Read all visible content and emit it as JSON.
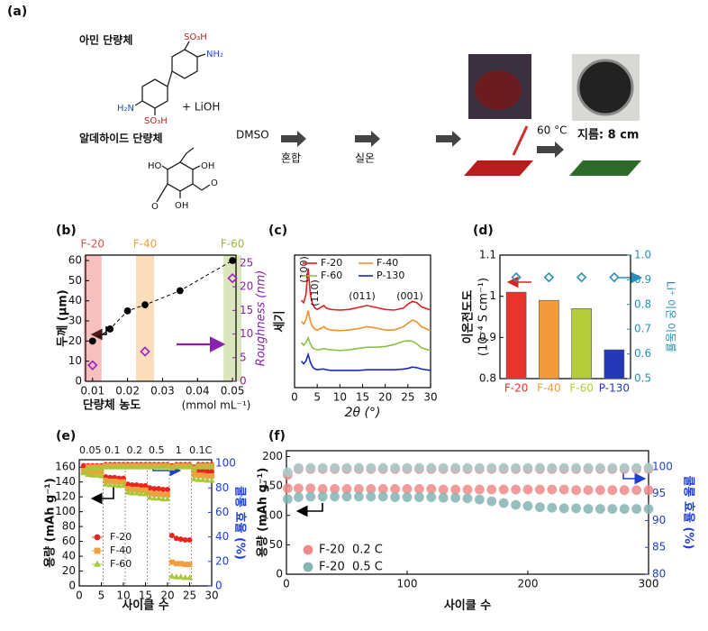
{
  "panel_a": {
    "label": "(a)",
    "amine_monomer": "아민 단량체",
    "aldehyde_monomer": "알데하이드 단량체",
    "plus_lioh": "+ LiOH",
    "solvent": "DMSO",
    "step_mix": "혼합",
    "step_rt": "실온",
    "temperature": "60 °C",
    "diameter": "지름: 8 cm",
    "groups": {
      "so3h": "SO₃H",
      "nh2": "NH₂",
      "h2n": "H₂N",
      "oh": "OH",
      "ho": "HO",
      "o": "O"
    }
  },
  "chart_data": [
    {
      "label": "(b)",
      "type": "scatter",
      "xlabel": "단량체 농도",
      "xunit": "(mmol mL⁻¹)",
      "ylabel": "두께 (μm)",
      "y2label": "Roughness (nm)",
      "xlim": [
        0.008,
        0.051
      ],
      "xticks": [
        0.01,
        0.02,
        0.03,
        0.04,
        0.05
      ],
      "ylim": [
        0,
        62.7
      ],
      "yticks": [
        0,
        10,
        20,
        30,
        40,
        50,
        60
      ],
      "y2lim": [
        0,
        26.7
      ],
      "y2ticks": [
        0,
        5,
        10,
        15,
        20,
        25
      ],
      "bands": [
        {
          "name": "F-20",
          "x": 0.01,
          "color": "#e84a4a"
        },
        {
          "name": "F-40",
          "x": 0.025,
          "color": "#f0a040"
        },
        {
          "name": "F-60",
          "x": 0.05,
          "color": "#98b840"
        }
      ],
      "series": [
        {
          "color": "#000000",
          "marker": "circle",
          "filled": true,
          "line": "dashed",
          "x": [
            0.01,
            0.015,
            0.02,
            0.025,
            0.035,
            0.05
          ],
          "values": [
            20,
            26,
            35,
            38,
            45,
            60
          ]
        },
        {
          "color": "#a020c0",
          "marker": "diamond",
          "filled": false,
          "axis": "y2",
          "x": [
            0.01,
            0.025,
            0.05
          ],
          "values": [
            3.4,
            6.3,
            21.8
          ]
        }
      ]
    },
    {
      "label": "(c)",
      "type": "line",
      "xlabel": "2θ (°)",
      "ylabel": "세기",
      "xlim": [
        0,
        30
      ],
      "xticks": [
        0,
        5,
        10,
        15,
        20,
        25,
        30
      ],
      "ylim": [
        0,
        10
      ],
      "annotations": [
        "(100)",
        "(110)",
        "(011)",
        "(001)"
      ],
      "x": [
        1.5,
        2,
        2.5,
        3,
        3.5,
        4,
        4.5,
        5,
        6,
        6.5,
        7,
        8,
        10,
        12,
        14,
        16,
        18,
        20,
        22,
        24,
        25,
        26,
        27,
        28,
        30
      ],
      "series": [
        {
          "name": "F-20",
          "color": "#e02020",
          "values": [
            6.6,
            6.4,
            7.0,
            9.0,
            7.0,
            6.3,
            6.0,
            5.9,
            6.1,
            6.2,
            6.0,
            5.9,
            5.85,
            5.9,
            6.05,
            6.2,
            6.05,
            5.9,
            5.85,
            6.0,
            6.3,
            6.5,
            6.4,
            6.1,
            5.85
          ]
        },
        {
          "name": "F-40",
          "color": "#f0902a",
          "values": [
            5.0,
            4.8,
            5.1,
            5.8,
            5.0,
            4.6,
            4.4,
            4.35,
            4.5,
            4.6,
            4.45,
            4.35,
            4.3,
            4.35,
            4.45,
            4.6,
            4.5,
            4.35,
            4.35,
            4.6,
            4.85,
            5.1,
            4.95,
            4.6,
            4.3
          ]
        },
        {
          "name": "F-60",
          "color": "#8cc040",
          "values": [
            3.4,
            3.2,
            3.4,
            3.75,
            3.3,
            3.0,
            2.9,
            2.85,
            2.9,
            2.95,
            2.9,
            2.85,
            2.8,
            2.85,
            2.95,
            3.05,
            3.05,
            3.1,
            3.25,
            3.5,
            3.55,
            3.5,
            3.3,
            3.0,
            2.8
          ]
        },
        {
          "name": "P-130",
          "color": "#1a28c8",
          "values": [
            2.0,
            1.8,
            2.0,
            2.5,
            1.9,
            1.55,
            1.4,
            1.35,
            1.4,
            1.4,
            1.35,
            1.3,
            1.3,
            1.3,
            1.3,
            1.35,
            1.35,
            1.35,
            1.35,
            1.4,
            1.45,
            1.55,
            1.5,
            1.4,
            1.3
          ]
        }
      ]
    },
    {
      "label": "(d)",
      "type": "bar",
      "ylabel": "이온전도도",
      "yunit": "(10⁻⁴ S cm⁻¹)",
      "y2label": "Li⁺ 이온 이동률",
      "categories": [
        "F-20",
        "F-40",
        "F-60",
        "P-130"
      ],
      "values": [
        1.01,
        0.99,
        0.97,
        0.87
      ],
      "colors": [
        "#e8342c",
        "#f39a3a",
        "#b5cc3a",
        "#2438b8"
      ],
      "ylim": [
        0.8,
        1.1
      ],
      "yticks": [
        0.8,
        0.9,
        1,
        1.1
      ],
      "y2lim": [
        0.5,
        1
      ],
      "y2ticks": [
        0.5,
        0.6,
        0.7,
        0.8,
        0.9,
        {
          "value": 1,
          "label": "1.0"
        }
      ],
      "series": [
        {
          "color": "#2a8fb8",
          "marker": "diamond",
          "filled": false,
          "axis": "y2",
          "values": [
            0.91,
            0.91,
            0.91,
            0.91
          ]
        }
      ]
    },
    {
      "label": "(e)",
      "type": "scatter",
      "xlabel": "사이클 수",
      "ylabel": "용량 (mAh g⁻¹)",
      "y2label": "쿨롱 효율 (%)",
      "rates": [
        "0.05",
        "0.1",
        "0.2",
        "0.5",
        "1",
        "0.1C"
      ],
      "xlim": [
        0,
        30
      ],
      "xticks": [
        0,
        5,
        10,
        15,
        20,
        25,
        30
      ],
      "ylim": [
        0,
        170
      ],
      "yticks": [
        0,
        20,
        40,
        60,
        80,
        100,
        120,
        140,
        160
      ],
      "y2lim": [
        0,
        103
      ],
      "y2ticks": [
        0,
        20,
        40,
        60,
        80,
        100
      ],
      "x": [
        1,
        2,
        3,
        4,
        5,
        6,
        7,
        8,
        9,
        10,
        11,
        12,
        13,
        14,
        15,
        16,
        17,
        18,
        19,
        20,
        21,
        22,
        23,
        24,
        25,
        26,
        27,
        28,
        29,
        30
      ],
      "series": [
        {
          "name": "F-20",
          "color": "#e8251f",
          "marker": "circle",
          "filled": true,
          "values": [
            162,
            160,
            159,
            158,
            158,
            147,
            146,
            146,
            145,
            145,
            137,
            136,
            136,
            135,
            135,
            132,
            131,
            131,
            130,
            130,
            68,
            64,
            63,
            62,
            62,
            156,
            155,
            155,
            154,
            154
          ]
        },
        {
          "name": "F-40",
          "color": "#f0a040",
          "marker": "square",
          "filled": true,
          "values": [
            156,
            154,
            153,
            153,
            152,
            142,
            141,
            141,
            140,
            140,
            131,
            130,
            130,
            129,
            129,
            125,
            124,
            124,
            123,
            123,
            32,
            30,
            30,
            29,
            29,
            150,
            149,
            149,
            148,
            148
          ]
        },
        {
          "name": "F-60",
          "color": "#a8c83a",
          "marker": "triangle",
          "filled": true,
          "values": [
            152,
            150,
            149,
            149,
            148,
            137,
            136,
            136,
            135,
            135,
            126,
            125,
            125,
            124,
            124,
            119,
            118,
            118,
            117,
            117,
            13,
            12,
            12,
            11,
            11,
            144,
            143,
            143,
            142,
            142
          ]
        },
        {
          "color": "#e8251f",
          "marker": "circle",
          "filled": true,
          "axis": "y2",
          "values": [
            95,
            98,
            98,
            98,
            98,
            99,
            99,
            99,
            99,
            99,
            99,
            99,
            99,
            99,
            99,
            99,
            99,
            99,
            99,
            99,
            98,
            99,
            99,
            99,
            99,
            97,
            99,
            99,
            99,
            99
          ]
        },
        {
          "color": "#f0a040",
          "marker": "square",
          "filled": true,
          "axis": "y2",
          "values": [
            94,
            97,
            97,
            97,
            97,
            98,
            98,
            98,
            98,
            98,
            98,
            98,
            98,
            98,
            98,
            98,
            98,
            98,
            98,
            98,
            97,
            98,
            98,
            98,
            98,
            96,
            98,
            98,
            98,
            98
          ]
        },
        {
          "color": "#a8c83a",
          "marker": "triangle",
          "filled": true,
          "axis": "y2",
          "values": [
            93,
            96,
            96,
            96,
            96,
            97,
            97,
            97,
            97,
            97,
            97,
            97,
            97,
            97,
            97,
            97,
            97,
            97,
            97,
            97,
            96,
            97,
            97,
            97,
            97,
            95,
            97,
            97,
            97,
            97
          ]
        }
      ]
    },
    {
      "label": "(f)",
      "type": "scatter",
      "xlabel": "사이클 수",
      "ylabel": "용량 (mAh g⁻¹)",
      "y2label": "쿨롱 효율 (%)",
      "xlim": [
        0,
        300
      ],
      "xticks": [
        0,
        100,
        200,
        300
      ],
      "ylim": [
        0,
        210
      ],
      "yticks": [
        0,
        50,
        100,
        150,
        200
      ],
      "y2lim": [
        80,
        103
      ],
      "y2ticks": [
        80,
        85,
        90,
        95,
        100
      ],
      "x": [
        1,
        10,
        20,
        30,
        40,
        50,
        60,
        70,
        80,
        90,
        100,
        110,
        120,
        130,
        140,
        150,
        160,
        170,
        180,
        190,
        200,
        210,
        220,
        230,
        240,
        250,
        260,
        270,
        280,
        290,
        300
      ],
      "series": [
        {
          "name": "F-20  0.2 C",
          "color": "#f08a8a",
          "marker": "circle",
          "filled": true,
          "values": [
            146,
            146,
            146,
            145,
            145,
            145,
            145,
            145,
            145,
            145,
            145,
            145,
            145,
            144,
            144,
            144,
            144,
            144,
            144,
            144,
            144,
            144,
            144,
            144,
            143,
            143,
            143,
            143,
            143,
            143,
            143
          ]
        },
        {
          "name": "F-20  0.5 C",
          "color": "#86b4b4",
          "marker": "circle",
          "filled": true,
          "values": [
            128,
            131,
            132,
            132,
            132,
            132,
            132,
            132,
            132,
            131,
            131,
            131,
            131,
            130,
            130,
            129,
            127,
            124,
            121,
            118,
            116,
            114,
            113,
            112,
            112,
            111,
            111,
            111,
            111,
            111,
            111
          ]
        },
        {
          "color": "#f08a8a",
          "marker": "circle",
          "filled": true,
          "axis": "y2",
          "values": [
            98.5,
            99.6,
            99.6,
            99.6,
            99.6,
            99.6,
            99.6,
            99.6,
            99.6,
            99.6,
            99.6,
            99.6,
            99.6,
            99.6,
            99.6,
            99.6,
            99.6,
            99.6,
            99.6,
            99.6,
            99.6,
            99.6,
            99.6,
            99.6,
            99.6,
            99.6,
            99.6,
            99.6,
            99.6,
            99.6,
            99.6
          ]
        },
        {
          "color": "#a8cccc",
          "marker": "circle",
          "filled": true,
          "axis": "y2",
          "values": [
            99,
            99.8,
            99.8,
            99.8,
            99.8,
            99.8,
            99.8,
            99.8,
            99.8,
            99.8,
            99.8,
            99.8,
            99.8,
            99.8,
            99.8,
            99.8,
            99.8,
            99.8,
            99.8,
            99.8,
            99.8,
            99.8,
            99.8,
            99.8,
            99.8,
            99.8,
            99.8,
            99.8,
            99.8,
            99.8,
            99.8
          ]
        }
      ]
    }
  ]
}
